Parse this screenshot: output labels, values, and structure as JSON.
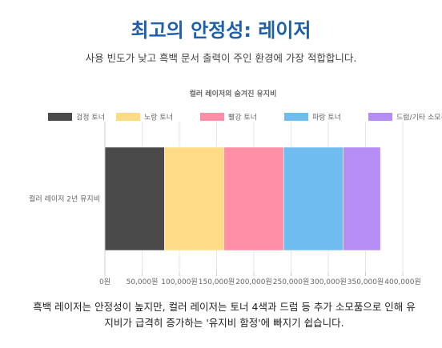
{
  "heading": {
    "title": "최고의 안정성: 레이저",
    "subtitle": "사용 빈도가 낮고 흑백 문서 출력이 주인 환경에 가장 적합합니다."
  },
  "footer": {
    "text": "흑백 레이저는 안정성이 높지만, 컬러 레이저는 토너 4색과 드럼 등 추가 소모품으로 인해 유지비가 급격히 증가하는 '유지비 함정'에 빠지기 쉽습니다."
  },
  "chart_data": {
    "type": "bar",
    "orientation": "horizontal",
    "stacked": true,
    "title": "컬러 레이저의 숨겨진 유지비",
    "categories": [
      "컬러 레이저 2년 유지비"
    ],
    "series": [
      {
        "name": "검정 토너",
        "values": [
          80000
        ],
        "color": "#4a4a4a"
      },
      {
        "name": "노랑 토너",
        "values": [
          80000
        ],
        "color": "#ffdb87"
      },
      {
        "name": "빨강 토너",
        "values": [
          80000
        ],
        "color": "#ff8fa6"
      },
      {
        "name": "파랑 토너",
        "values": [
          80000
        ],
        "color": "#6fbcee"
      },
      {
        "name": "드럼/기타 소모품",
        "values": [
          50000
        ],
        "color": "#b68cf7"
      }
    ],
    "xlim": [
      0,
      400000
    ],
    "xticks": [
      "0원",
      "50,000원",
      "100,000원",
      "150,000원",
      "200,000원",
      "250,000원",
      "300,000원",
      "350,000원",
      "400,000원"
    ],
    "legend_position": "top",
    "grid": true
  }
}
